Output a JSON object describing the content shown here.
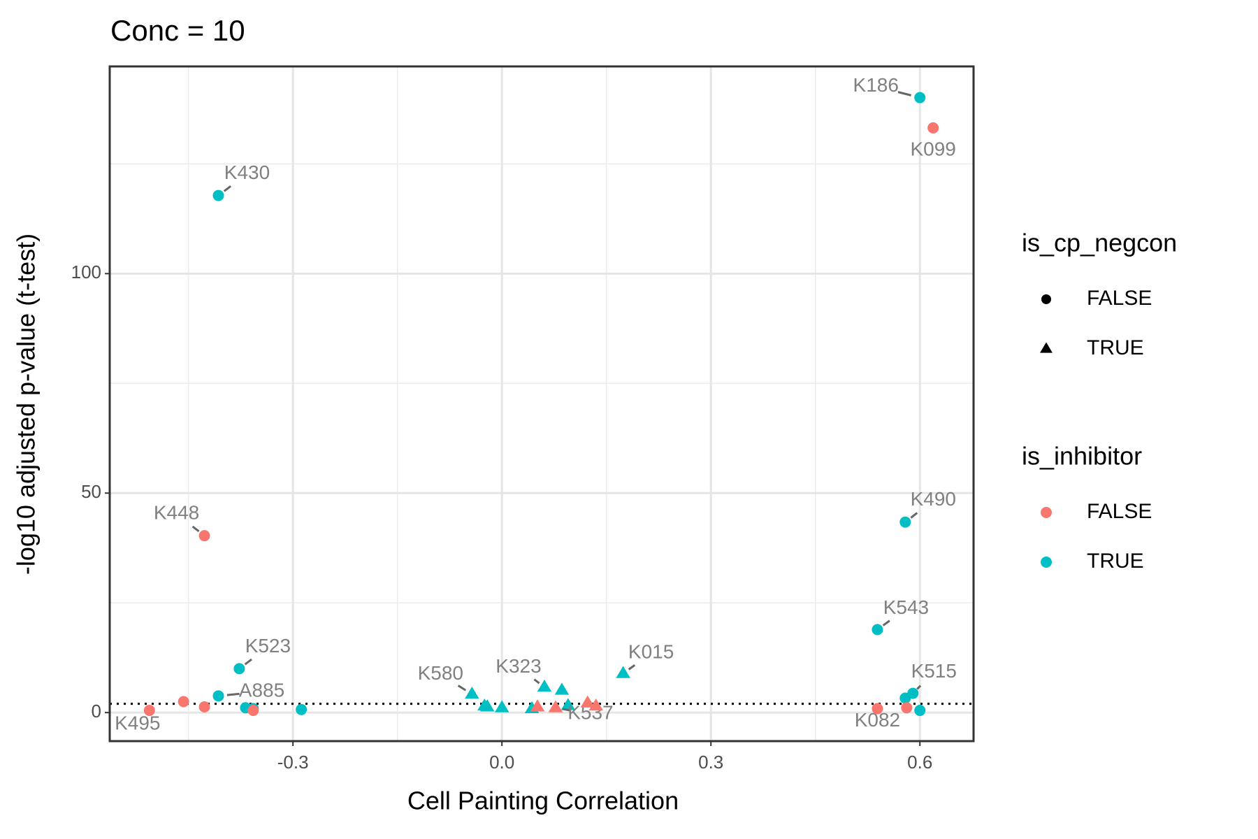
{
  "chart_data": {
    "type": "scatter",
    "title": "Conc = 10",
    "xlabel": "Cell Painting Correlation",
    "ylabel": "-log10 adjusted p-value (t-test)",
    "xlim": [
      -0.563,
      0.677
    ],
    "ylim": [
      -6.5,
      147.2
    ],
    "xticks": [
      -0.3,
      {
        "value": 0,
        "label": "0.0"
      },
      0.3,
      0.6
    ],
    "yticks": [
      0,
      50,
      100
    ],
    "xminor": [
      -0.45,
      -0.15,
      0.15,
      0.45
    ],
    "yminor": [
      25,
      75,
      125
    ],
    "grid": true,
    "hline": 2,
    "legends": [
      {
        "title": "is_cp_negcon",
        "entries": [
          {
            "label": "FALSE",
            "shape": "circle"
          },
          {
            "label": "TRUE",
            "shape": "triangle"
          }
        ]
      },
      {
        "title": "is_inhibitor",
        "entries": [
          {
            "label": "FALSE",
            "color": "#F8766D"
          },
          {
            "label": "TRUE",
            "color": "#00BFC4"
          }
        ]
      }
    ],
    "series": [
      {
        "shape": "circle",
        "color": "#00BFC4",
        "x": [
          0.6,
          -0.407,
          0.579,
          0.539,
          -0.377,
          -0.407,
          -0.368,
          -0.357,
          -0.288,
          0.59,
          0.579,
          0.6
        ],
        "y": [
          140.1,
          117.8,
          43.4,
          18.9,
          10.0,
          3.8,
          1.1,
          0.9,
          0.7,
          4.4,
          3.3,
          0.5
        ],
        "labels": [
          "K186",
          "K430",
          "K490",
          "K543",
          "K523",
          "A885",
          null,
          null,
          null,
          "K515",
          null,
          null
        ]
      },
      {
        "shape": "circle",
        "color": "#F8766D",
        "x": [
          0.619,
          -0.427,
          -0.506,
          -0.457,
          -0.427,
          -0.357,
          0.539,
          0.581
        ],
        "y": [
          133.2,
          40.3,
          0.5,
          2.5,
          1.3,
          0.5,
          0.9,
          1.1
        ],
        "labels": [
          "K099",
          "K448",
          "K495",
          null,
          null,
          null,
          "K082",
          null
        ]
      },
      {
        "shape": "triangle",
        "color": "#00BFC4",
        "x": [
          0.174,
          -0.043,
          0.061,
          0.086,
          -0.025,
          -0.021,
          0.0,
          0.043,
          0.095
        ],
        "y": [
          8.9,
          4.2,
          5.8,
          5.1,
          1.5,
          1.3,
          1.1,
          0.9,
          1.6
        ],
        "labels": [
          "K015",
          "K580",
          "K323",
          null,
          null,
          null,
          null,
          null,
          null
        ]
      },
      {
        "shape": "triangle",
        "color": "#F8766D",
        "x": [
          0.051,
          0.077,
          0.123,
          0.135
        ],
        "y": [
          1.3,
          1.1,
          2.2,
          1.5
        ],
        "labels": [
          null,
          "K537",
          null,
          null
        ]
      }
    ]
  }
}
